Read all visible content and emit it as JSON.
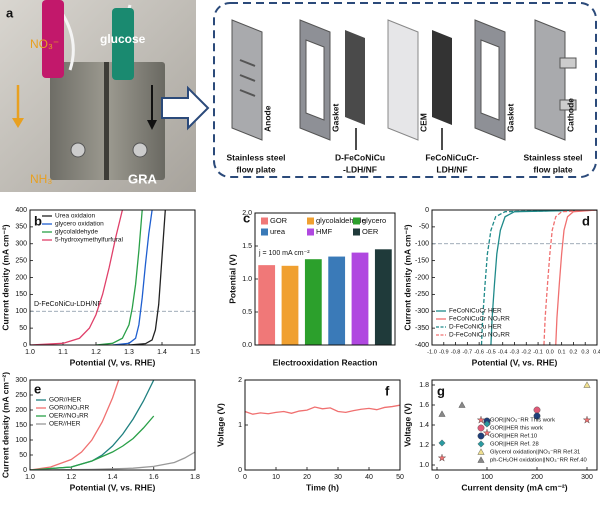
{
  "panel_a": {
    "label": "a",
    "photo": {
      "nitrate": "NO₃⁻",
      "glucose": "glucose",
      "ammonia": "NH₃",
      "device": "GRA"
    },
    "side_labels": [
      "Anode",
      "Gasket",
      "CEM",
      "Gasket",
      "Cathode"
    ],
    "bottom_labels": [
      [
        "Stainless steel",
        "flow plate"
      ],
      [
        "D-FeCoNiCu",
        "-LDH/NF"
      ],
      [
        "FeCoNiCuCr-",
        "LDH/NF"
      ],
      [
        "Stainless steel",
        "flow plate"
      ]
    ]
  },
  "chart_data": [
    {
      "type": "line",
      "panel": "b",
      "xlabel": "Potential (V, vs. RHE)",
      "ylabel": "Current density (mA cm⁻²)",
      "xlim": [
        1.0,
        1.5
      ],
      "ylim": [
        0,
        400
      ],
      "xticks": [
        {
          "value": 1.0,
          "label": "1.0"
        },
        1.1,
        1.2,
        1.3,
        1.4,
        1.5
      ],
      "yticks": [
        0,
        50,
        100,
        150,
        200,
        250,
        300,
        350,
        400
      ],
      "hline": 100,
      "annotation": "D-FeCoNiCu-LDH/NF",
      "legend": "upper left",
      "series": [
        {
          "name": "Urea oxidaion",
          "color": "#222222",
          "x": [
            1.3,
            1.35,
            1.37,
            1.38,
            1.39,
            1.4,
            1.41
          ],
          "values": [
            0,
            4,
            15,
            45,
            120,
            260,
            400
          ]
        },
        {
          "name": "glycero oxidation",
          "color": "#1f5fd0",
          "x": [
            1.25,
            1.3,
            1.32,
            1.33,
            1.34,
            1.35,
            1.36,
            1.37
          ],
          "values": [
            0,
            5,
            20,
            60,
            140,
            240,
            330,
            400
          ]
        },
        {
          "name": "glycolaldehyde",
          "color": "#2aa048",
          "x": [
            1.2,
            1.25,
            1.28,
            1.3,
            1.31,
            1.32,
            1.33,
            1.34
          ],
          "values": [
            0,
            5,
            20,
            60,
            110,
            180,
            280,
            400
          ]
        },
        {
          "name": "5-hydroxymethylfurfural",
          "color": "#e0406a",
          "x": [
            1.0,
            1.1,
            1.15,
            1.18,
            1.2,
            1.22,
            1.24,
            1.26,
            1.28
          ],
          "values": [
            0,
            5,
            20,
            50,
            90,
            150,
            230,
            320,
            400
          ]
        }
      ]
    },
    {
      "type": "bar",
      "panel": "c",
      "xlabel": "Electrooxidation Reaction",
      "ylabel": "Potential (V)",
      "ylim": [
        0,
        2.0
      ],
      "yticks": [
        {
          "value": 0,
          "label": "0.0"
        },
        0.5,
        {
          "value": 1.0,
          "label": "1.0"
        },
        1.5,
        {
          "value": 2.0,
          "label": "2.0"
        }
      ],
      "annotation": "j = 100 mA cm⁻²",
      "legend": "top",
      "categories": [
        "GOR",
        "glycolaldehyde",
        "glycero",
        "urea",
        "HMF",
        "OER"
      ],
      "values": [
        1.21,
        1.2,
        1.3,
        1.34,
        1.4,
        1.45
      ],
      "colors": [
        "#f07878",
        "#f0a030",
        "#2ca02c",
        "#3a7ab8",
        "#b048e0",
        "#1f3a3a"
      ]
    },
    {
      "type": "line",
      "panel": "d",
      "xlabel": "Potential (V, vs. RHE)",
      "ylabel": "Current density (mA cm⁻²)",
      "xlim": [
        -1.0,
        0.4
      ],
      "ylim": [
        -400,
        0
      ],
      "xticks": [
        {
          "value": -1.0,
          "label": "-1.0"
        },
        -0.9,
        -0.8,
        -0.7,
        -0.6,
        -0.5,
        -0.4,
        -0.3,
        -0.2,
        -0.1,
        {
          "value": 0.0,
          "label": "0.0"
        },
        0.1,
        0.2,
        0.3,
        0.4
      ],
      "yticks": [
        0,
        -50,
        -100,
        -150,
        -200,
        -250,
        -300,
        -350,
        -400
      ],
      "hline": -100,
      "legend": "lower left",
      "series": [
        {
          "name": "FeCoNiCuCr HER",
          "color": "#1f8a8a",
          "dash": false,
          "x": [
            0.4,
            -0.3,
            -0.38,
            -0.42,
            -0.45,
            -0.47,
            -0.49,
            -0.5
          ],
          "values": [
            0,
            -5,
            -20,
            -60,
            -130,
            -220,
            -320,
            -400
          ]
        },
        {
          "name": "FeCoNiCuCr NO₃RR",
          "color": "#f07070",
          "dash": false,
          "x": [
            0.4,
            0.2,
            0.15,
            0.12,
            0.1,
            0.08,
            0.06,
            0.05
          ],
          "values": [
            0,
            -5,
            -20,
            -60,
            -130,
            -220,
            -320,
            -400
          ]
        },
        {
          "name": "D-FeCoNiCu HER",
          "color": "#1f8a8a",
          "dash": true,
          "x": [
            0.4,
            -0.38,
            -0.46,
            -0.5,
            -0.53,
            -0.55,
            -0.57,
            -0.58
          ],
          "values": [
            0,
            -5,
            -20,
            -60,
            -130,
            -220,
            -320,
            -400
          ]
        },
        {
          "name": "D-FeCoNiCu NO₃RR",
          "color": "#f07070",
          "dash": true,
          "x": [
            0.4,
            0.1,
            0.05,
            0.02,
            0.0,
            -0.02,
            -0.04,
            -0.05
          ],
          "values": [
            0,
            -5,
            -20,
            -60,
            -130,
            -220,
            -320,
            -400
          ]
        }
      ]
    },
    {
      "type": "line",
      "panel": "e",
      "xlabel": "Potential (V, vs. RHE)",
      "ylabel": "Current density (mA cm⁻²)",
      "xlim": [
        1.0,
        1.8
      ],
      "ylim": [
        0,
        300
      ],
      "xticks": [
        {
          "value": 1.0,
          "label": "1.0"
        },
        1.2,
        1.4,
        1.6,
        1.8
      ],
      "yticks": [
        0,
        50,
        100,
        150,
        200,
        250,
        300
      ],
      "legend": "upper left",
      "series": [
        {
          "name": "GOR//HER",
          "color": "#1f8080",
          "x": [
            1.0,
            1.2,
            1.3,
            1.35,
            1.4,
            1.45,
            1.5,
            1.55,
            1.6
          ],
          "values": [
            0,
            10,
            30,
            50,
            80,
            120,
            170,
            230,
            300
          ]
        },
        {
          "name": "GOR//NO₃RR",
          "color": "#f07070",
          "x": [
            1.0,
            1.1,
            1.2,
            1.25,
            1.3,
            1.35,
            1.4,
            1.43
          ],
          "values": [
            0,
            10,
            35,
            60,
            100,
            160,
            240,
            300
          ]
        },
        {
          "name": "OER//NO₃RR",
          "color": "#2aa048",
          "x": [
            1.0,
            1.2,
            1.3,
            1.4,
            1.45,
            1.5,
            1.55,
            1.6
          ],
          "values": [
            0,
            10,
            30,
            60,
            80,
            105,
            140,
            180
          ]
        },
        {
          "name": "OER//HER",
          "color": "#999999",
          "x": [
            1.0,
            1.3,
            1.5,
            1.6,
            1.7,
            1.75,
            1.8
          ],
          "values": [
            0,
            2,
            6,
            12,
            25,
            40,
            60
          ]
        }
      ]
    },
    {
      "type": "line",
      "panel": "f",
      "xlabel": "Time (h)",
      "ylabel": "Voltage (V)",
      "xlim": [
        0,
        50
      ],
      "ylim": [
        0,
        2
      ],
      "xticks": [
        0,
        10,
        20,
        30,
        40,
        50
      ],
      "yticks": [
        0,
        1,
        2
      ],
      "series": [
        {
          "color": "#f07070",
          "x": [
            0,
            2.5,
            5,
            7.5,
            10,
            12.5,
            15,
            17.5,
            20,
            22.5,
            25,
            27.5,
            30,
            32.5,
            35,
            37.5,
            40,
            42.5,
            45,
            47.5,
            50
          ],
          "values": [
            1.3,
            1.24,
            1.27,
            1.25,
            1.28,
            1.3,
            1.26,
            1.31,
            1.33,
            1.4,
            1.36,
            1.38,
            1.3,
            1.28,
            1.32,
            1.35,
            1.37,
            1.34,
            1.39,
            1.41,
            1.44
          ]
        }
      ]
    },
    {
      "type": "scatter",
      "panel": "g",
      "xlabel": "Current density (mA cm⁻²)",
      "ylabel": "Voltage (V)",
      "xlim": [
        -10,
        320
      ],
      "ylim": [
        0.95,
        1.85
      ],
      "xticks": [
        0,
        100,
        200,
        300
      ],
      "yticks": [
        {
          "value": 1.0,
          "label": "1.0"
        },
        1.2,
        1.4,
        1.6,
        1.8
      ],
      "legend": "lower right",
      "series": [
        {
          "name": "GOR||NO₃⁻RR This work",
          "color": "#f07070",
          "marker": "star",
          "x": [
            10,
            100,
            300
          ],
          "values": [
            1.07,
            1.32,
            1.45
          ]
        },
        {
          "name": "GOR||HER this work",
          "color": "#e05a78",
          "marker": "circle",
          "x": [
            100,
            200
          ],
          "values": [
            1.42,
            1.55
          ]
        },
        {
          "name": "GOR||HER Ref.10",
          "color": "#1f3f7a",
          "marker": "circle",
          "x": [
            100,
            200
          ],
          "values": [
            1.44,
            1.49
          ]
        },
        {
          "name": "GOR||HER Ref. 28",
          "color": "#2a9aa0",
          "marker": "diamond",
          "x": [
            10,
            100
          ],
          "values": [
            1.22,
            1.41
          ]
        },
        {
          "name": "Glycerol oxidation||NO₃⁻RR Ref.31",
          "color": "#f0e090",
          "marker": "triangle",
          "x": [
            300
          ],
          "values": [
            1.8
          ]
        },
        {
          "name": "ph-CH₂OH oxidation||NO₃⁻RR Ref.40",
          "color": "#888888",
          "marker": "triangle",
          "x": [
            10,
            50
          ],
          "values": [
            1.51,
            1.6
          ]
        }
      ]
    }
  ]
}
